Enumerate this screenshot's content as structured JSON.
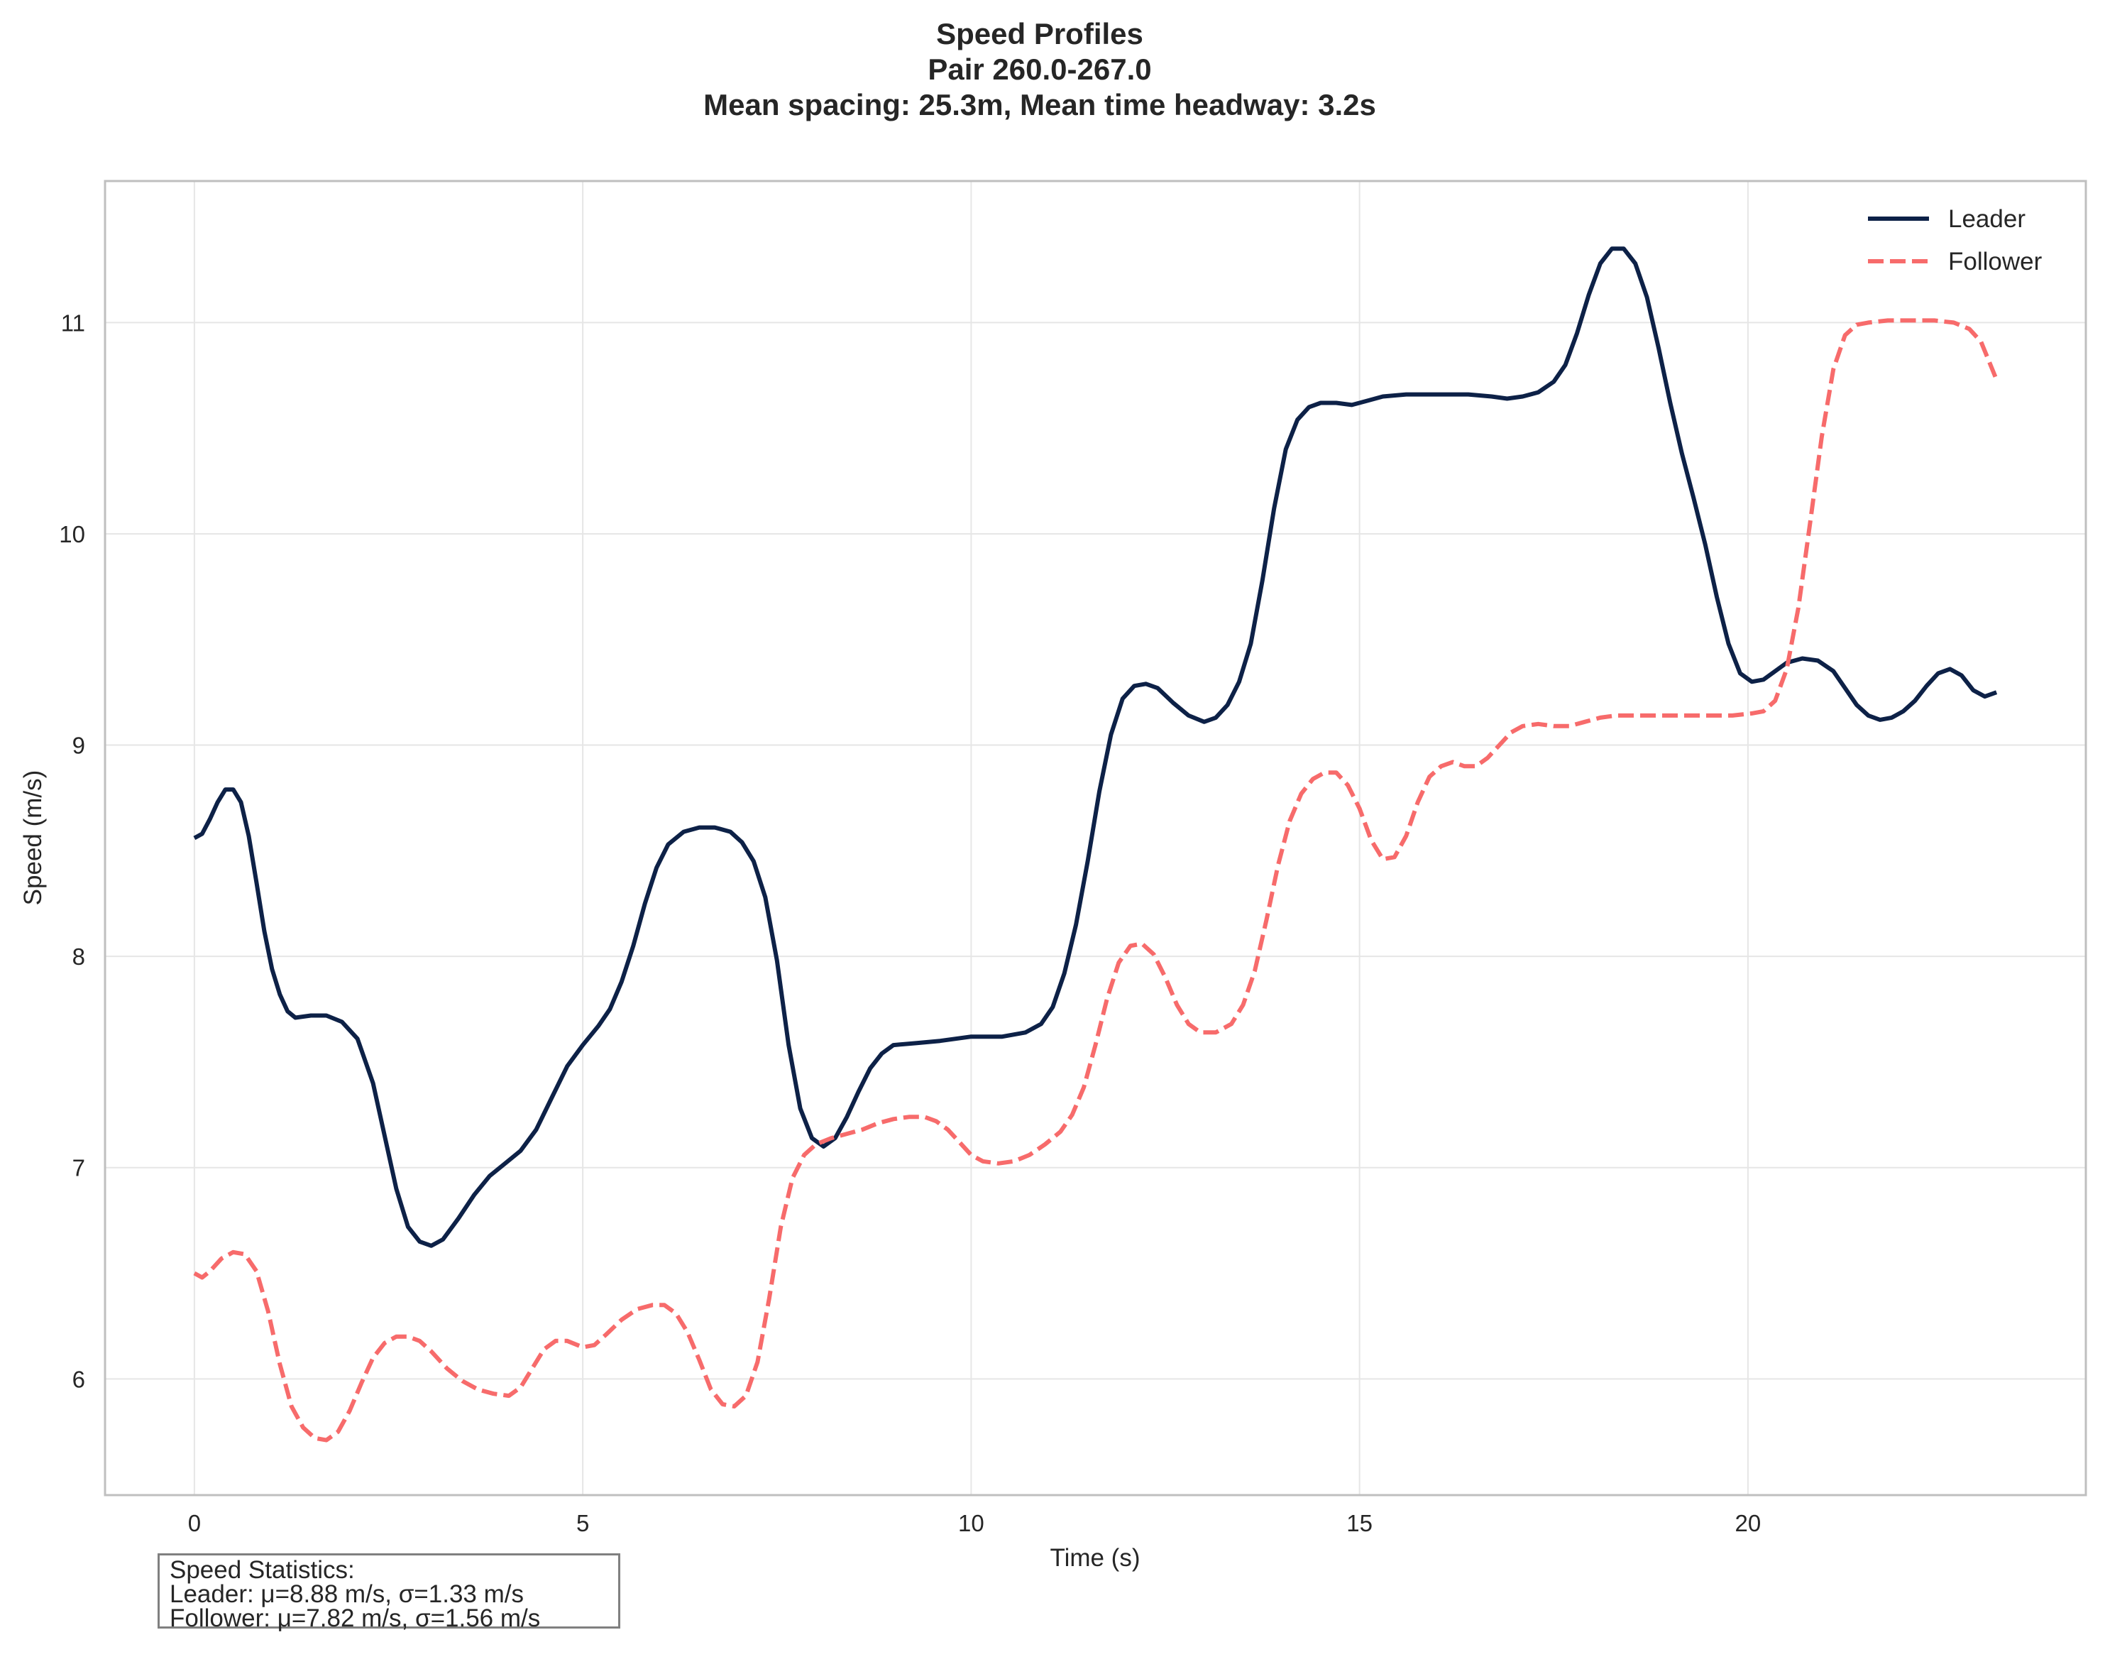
{
  "chart_data": {
    "type": "line",
    "title_lines": [
      "Speed Profiles",
      "Pair 260.0-267.0",
      "Mean spacing: 25.3m, Mean time headway: 3.2s"
    ],
    "xlabel": "Time (s)",
    "ylabel": "Speed (m/s)",
    "xlim": [
      -1.15,
      24.35
    ],
    "ylim": [
      5.45,
      11.67
    ],
    "xticks": [
      0,
      5,
      10,
      15,
      20
    ],
    "yticks": [
      6,
      7,
      8,
      9,
      10,
      11
    ],
    "grid": true,
    "legend_position": "top-right",
    "series": [
      {
        "name": "Leader",
        "color": "#0d2147",
        "style": "solid",
        "points": [
          [
            0.0,
            8.56
          ],
          [
            0.1,
            8.58
          ],
          [
            0.2,
            8.65
          ],
          [
            0.3,
            8.73
          ],
          [
            0.4,
            8.79
          ],
          [
            0.5,
            8.79
          ],
          [
            0.6,
            8.73
          ],
          [
            0.7,
            8.57
          ],
          [
            0.8,
            8.35
          ],
          [
            0.9,
            8.12
          ],
          [
            1.0,
            7.94
          ],
          [
            1.1,
            7.82
          ],
          [
            1.2,
            7.74
          ],
          [
            1.3,
            7.71
          ],
          [
            1.5,
            7.72
          ],
          [
            1.7,
            7.72
          ],
          [
            1.9,
            7.69
          ],
          [
            2.1,
            7.61
          ],
          [
            2.3,
            7.4
          ],
          [
            2.45,
            7.15
          ],
          [
            2.6,
            6.9
          ],
          [
            2.75,
            6.72
          ],
          [
            2.9,
            6.65
          ],
          [
            3.05,
            6.63
          ],
          [
            3.2,
            6.66
          ],
          [
            3.4,
            6.76
          ],
          [
            3.6,
            6.87
          ],
          [
            3.8,
            6.96
          ],
          [
            4.0,
            7.02
          ],
          [
            4.2,
            7.08
          ],
          [
            4.4,
            7.18
          ],
          [
            4.6,
            7.33
          ],
          [
            4.8,
            7.48
          ],
          [
            5.0,
            7.58
          ],
          [
            5.2,
            7.67
          ],
          [
            5.35,
            7.75
          ],
          [
            5.5,
            7.88
          ],
          [
            5.65,
            8.05
          ],
          [
            5.8,
            8.25
          ],
          [
            5.95,
            8.42
          ],
          [
            6.1,
            8.53
          ],
          [
            6.3,
            8.59
          ],
          [
            6.5,
            8.61
          ],
          [
            6.7,
            8.61
          ],
          [
            6.9,
            8.59
          ],
          [
            7.05,
            8.54
          ],
          [
            7.2,
            8.45
          ],
          [
            7.35,
            8.28
          ],
          [
            7.5,
            7.98
          ],
          [
            7.65,
            7.58
          ],
          [
            7.8,
            7.28
          ],
          [
            7.95,
            7.14
          ],
          [
            8.1,
            7.1
          ],
          [
            8.25,
            7.14
          ],
          [
            8.4,
            7.24
          ],
          [
            8.55,
            7.36
          ],
          [
            8.7,
            7.47
          ],
          [
            8.85,
            7.54
          ],
          [
            9.0,
            7.58
          ],
          [
            9.3,
            7.59
          ],
          [
            9.6,
            7.6
          ],
          [
            10.0,
            7.62
          ],
          [
            10.4,
            7.62
          ],
          [
            10.7,
            7.64
          ],
          [
            10.9,
            7.68
          ],
          [
            11.05,
            7.76
          ],
          [
            11.2,
            7.92
          ],
          [
            11.35,
            8.15
          ],
          [
            11.5,
            8.45
          ],
          [
            11.65,
            8.78
          ],
          [
            11.8,
            9.05
          ],
          [
            11.95,
            9.22
          ],
          [
            12.1,
            9.28
          ],
          [
            12.25,
            9.29
          ],
          [
            12.4,
            9.27
          ],
          [
            12.6,
            9.2
          ],
          [
            12.8,
            9.14
          ],
          [
            13.0,
            9.11
          ],
          [
            13.15,
            9.13
          ],
          [
            13.3,
            9.19
          ],
          [
            13.45,
            9.3
          ],
          [
            13.6,
            9.48
          ],
          [
            13.75,
            9.78
          ],
          [
            13.9,
            10.12
          ],
          [
            14.05,
            10.4
          ],
          [
            14.2,
            10.54
          ],
          [
            14.35,
            10.6
          ],
          [
            14.5,
            10.62
          ],
          [
            14.7,
            10.62
          ],
          [
            14.9,
            10.61
          ],
          [
            15.1,
            10.63
          ],
          [
            15.3,
            10.65
          ],
          [
            15.6,
            10.66
          ],
          [
            16.0,
            10.66
          ],
          [
            16.4,
            10.66
          ],
          [
            16.7,
            10.65
          ],
          [
            16.9,
            10.64
          ],
          [
            17.1,
            10.65
          ],
          [
            17.3,
            10.67
          ],
          [
            17.5,
            10.72
          ],
          [
            17.65,
            10.8
          ],
          [
            17.8,
            10.95
          ],
          [
            17.95,
            11.13
          ],
          [
            18.1,
            11.28
          ],
          [
            18.25,
            11.35
          ],
          [
            18.4,
            11.35
          ],
          [
            18.55,
            11.28
          ],
          [
            18.7,
            11.12
          ],
          [
            18.85,
            10.88
          ],
          [
            19.0,
            10.62
          ],
          [
            19.15,
            10.38
          ],
          [
            19.3,
            10.17
          ],
          [
            19.45,
            9.95
          ],
          [
            19.6,
            9.7
          ],
          [
            19.75,
            9.48
          ],
          [
            19.9,
            9.34
          ],
          [
            20.05,
            9.3
          ],
          [
            20.2,
            9.31
          ],
          [
            20.35,
            9.35
          ],
          [
            20.5,
            9.39
          ],
          [
            20.7,
            9.41
          ],
          [
            20.9,
            9.4
          ],
          [
            21.1,
            9.35
          ],
          [
            21.25,
            9.27
          ],
          [
            21.4,
            9.19
          ],
          [
            21.55,
            9.14
          ],
          [
            21.7,
            9.12
          ],
          [
            21.85,
            9.13
          ],
          [
            22.0,
            9.16
          ],
          [
            22.15,
            9.21
          ],
          [
            22.3,
            9.28
          ],
          [
            22.45,
            9.34
          ],
          [
            22.6,
            9.36
          ],
          [
            22.75,
            9.33
          ],
          [
            22.9,
            9.26
          ],
          [
            23.05,
            9.23
          ],
          [
            23.2,
            9.25
          ]
        ]
      },
      {
        "name": "Follower",
        "color": "#f76b6b",
        "style": "dashed",
        "points": [
          [
            0.0,
            6.5
          ],
          [
            0.1,
            6.48
          ],
          [
            0.2,
            6.51
          ],
          [
            0.35,
            6.57
          ],
          [
            0.5,
            6.6
          ],
          [
            0.65,
            6.59
          ],
          [
            0.8,
            6.51
          ],
          [
            0.95,
            6.32
          ],
          [
            1.1,
            6.07
          ],
          [
            1.25,
            5.87
          ],
          [
            1.4,
            5.77
          ],
          [
            1.55,
            5.72
          ],
          [
            1.7,
            5.71
          ],
          [
            1.85,
            5.75
          ],
          [
            2.0,
            5.85
          ],
          [
            2.15,
            5.98
          ],
          [
            2.3,
            6.1
          ],
          [
            2.45,
            6.17
          ],
          [
            2.6,
            6.2
          ],
          [
            2.75,
            6.2
          ],
          [
            2.9,
            6.18
          ],
          [
            3.05,
            6.13
          ],
          [
            3.25,
            6.05
          ],
          [
            3.45,
            5.99
          ],
          [
            3.65,
            5.95
          ],
          [
            3.85,
            5.93
          ],
          [
            4.05,
            5.92
          ],
          [
            4.2,
            5.96
          ],
          [
            4.35,
            6.05
          ],
          [
            4.5,
            6.14
          ],
          [
            4.65,
            6.18
          ],
          [
            4.8,
            6.18
          ],
          [
            5.0,
            6.15
          ],
          [
            5.15,
            6.16
          ],
          [
            5.3,
            6.21
          ],
          [
            5.5,
            6.28
          ],
          [
            5.7,
            6.33
          ],
          [
            5.9,
            6.35
          ],
          [
            6.05,
            6.35
          ],
          [
            6.2,
            6.31
          ],
          [
            6.35,
            6.22
          ],
          [
            6.5,
            6.09
          ],
          [
            6.65,
            5.95
          ],
          [
            6.8,
            5.88
          ],
          [
            6.95,
            5.87
          ],
          [
            7.1,
            5.92
          ],
          [
            7.25,
            6.08
          ],
          [
            7.4,
            6.38
          ],
          [
            7.55,
            6.72
          ],
          [
            7.7,
            6.95
          ],
          [
            7.85,
            7.06
          ],
          [
            8.0,
            7.11
          ],
          [
            8.2,
            7.14
          ],
          [
            8.4,
            7.16
          ],
          [
            8.6,
            7.18
          ],
          [
            8.8,
            7.21
          ],
          [
            9.0,
            7.23
          ],
          [
            9.2,
            7.24
          ],
          [
            9.4,
            7.24
          ],
          [
            9.55,
            7.22
          ],
          [
            9.7,
            7.18
          ],
          [
            9.85,
            7.12
          ],
          [
            10.0,
            7.06
          ],
          [
            10.15,
            7.03
          ],
          [
            10.35,
            7.02
          ],
          [
            10.55,
            7.03
          ],
          [
            10.75,
            7.06
          ],
          [
            10.95,
            7.11
          ],
          [
            11.15,
            7.17
          ],
          [
            11.3,
            7.25
          ],
          [
            11.45,
            7.38
          ],
          [
            11.6,
            7.58
          ],
          [
            11.75,
            7.8
          ],
          [
            11.9,
            7.97
          ],
          [
            12.05,
            8.05
          ],
          [
            12.2,
            8.06
          ],
          [
            12.35,
            8.01
          ],
          [
            12.5,
            7.9
          ],
          [
            12.65,
            7.77
          ],
          [
            12.8,
            7.68
          ],
          [
            12.95,
            7.64
          ],
          [
            13.15,
            7.64
          ],
          [
            13.35,
            7.68
          ],
          [
            13.5,
            7.77
          ],
          [
            13.65,
            7.93
          ],
          [
            13.8,
            8.17
          ],
          [
            13.95,
            8.43
          ],
          [
            14.1,
            8.64
          ],
          [
            14.25,
            8.77
          ],
          [
            14.4,
            8.84
          ],
          [
            14.55,
            8.87
          ],
          [
            14.7,
            8.87
          ],
          [
            14.85,
            8.81
          ],
          [
            15.0,
            8.7
          ],
          [
            15.15,
            8.55
          ],
          [
            15.3,
            8.46
          ],
          [
            15.45,
            8.47
          ],
          [
            15.6,
            8.57
          ],
          [
            15.75,
            8.73
          ],
          [
            15.9,
            8.85
          ],
          [
            16.05,
            8.9
          ],
          [
            16.2,
            8.92
          ],
          [
            16.35,
            8.9
          ],
          [
            16.5,
            8.9
          ],
          [
            16.65,
            8.94
          ],
          [
            16.8,
            9.0
          ],
          [
            16.95,
            9.06
          ],
          [
            17.1,
            9.09
          ],
          [
            17.3,
            9.1
          ],
          [
            17.5,
            9.09
          ],
          [
            17.7,
            9.09
          ],
          [
            17.9,
            9.11
          ],
          [
            18.1,
            9.13
          ],
          [
            18.3,
            9.14
          ],
          [
            18.6,
            9.14
          ],
          [
            19.0,
            9.14
          ],
          [
            19.4,
            9.14
          ],
          [
            19.8,
            9.14
          ],
          [
            20.05,
            9.15
          ],
          [
            20.2,
            9.16
          ],
          [
            20.35,
            9.21
          ],
          [
            20.5,
            9.36
          ],
          [
            20.65,
            9.65
          ],
          [
            20.8,
            10.05
          ],
          [
            20.95,
            10.46
          ],
          [
            21.1,
            10.78
          ],
          [
            21.25,
            10.94
          ],
          [
            21.4,
            10.99
          ],
          [
            21.55,
            11.0
          ],
          [
            21.8,
            11.01
          ],
          [
            22.1,
            11.01
          ],
          [
            22.4,
            11.01
          ],
          [
            22.65,
            11.0
          ],
          [
            22.85,
            10.97
          ],
          [
            23.0,
            10.91
          ],
          [
            23.1,
            10.82
          ],
          [
            23.2,
            10.73
          ]
        ]
      }
    ],
    "stats_box": {
      "heading": "Speed Statistics:",
      "leader": "Leader: μ=8.88 m/s, σ=1.33 m/s",
      "follower": "Follower: μ=7.82 m/s, σ=1.56 m/s"
    }
  }
}
